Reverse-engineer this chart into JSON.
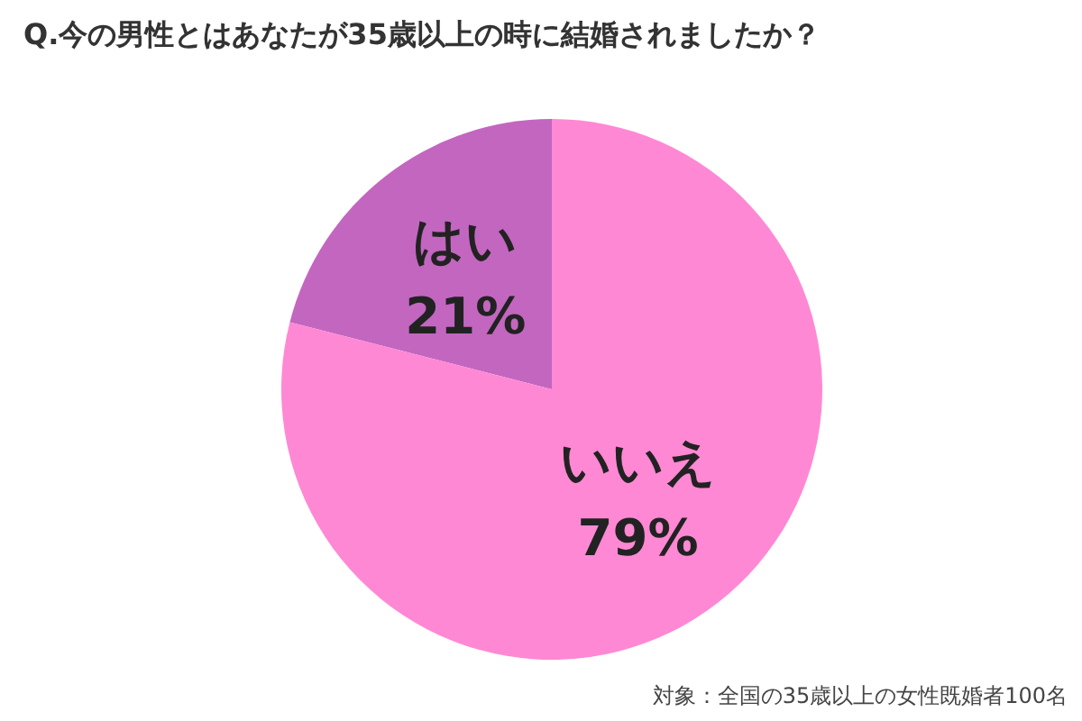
{
  "chart_data": {
    "type": "pie",
    "title": "Q.今の男性とはあなたが35歳以上の時に結婚されましたか？",
    "categories": [
      "はい",
      "いいえ"
    ],
    "values": [
      21,
      79
    ],
    "colors": [
      "#c366c0",
      "#ff88d4"
    ],
    "value_labels": [
      "21%",
      "79%"
    ],
    "legend": false,
    "annotations": [
      "対象：全国の35歳以上の女性既婚者100名"
    ]
  }
}
